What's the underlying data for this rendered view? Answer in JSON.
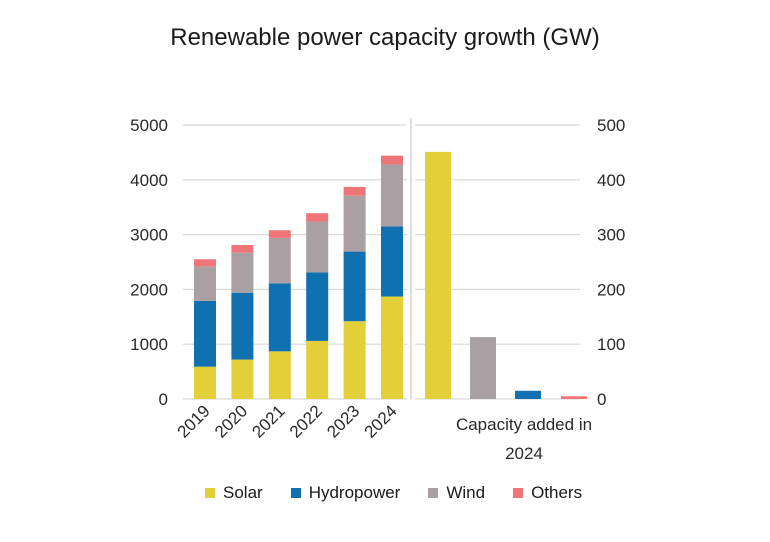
{
  "chart_data": [
    {
      "type": "bar",
      "stacked": true,
      "title": "Renewable power capacity growth (GW)",
      "categories": [
        "2019",
        "2020",
        "2021",
        "2022",
        "2023",
        "2024"
      ],
      "ylim": [
        0,
        5000
      ],
      "yticks": [
        "0",
        "1000",
        "2000",
        "3000",
        "4000",
        "5000"
      ],
      "grid": true,
      "series": [
        {
          "name": "Solar",
          "color": "#e3cf3a",
          "values": [
            590,
            720,
            870,
            1060,
            1420,
            1870
          ]
        },
        {
          "name": "Hydropower",
          "color": "#1170b0",
          "values": [
            1200,
            1220,
            1240,
            1250,
            1270,
            1280
          ]
        },
        {
          "name": "Wind",
          "color": "#aaa0a3",
          "values": [
            630,
            730,
            830,
            930,
            1020,
            1130
          ]
        },
        {
          "name": "Others",
          "color": "#f07579",
          "values": [
            130,
            140,
            140,
            150,
            160,
            160
          ]
        }
      ]
    },
    {
      "type": "bar",
      "xlabel": "Capacity added in 2024",
      "ylim": [
        0,
        500
      ],
      "yticks": [
        "0",
        "100",
        "200",
        "300",
        "400",
        "500"
      ],
      "categories": [
        "Solar",
        "Wind",
        "Hydropower",
        "Others"
      ],
      "values": [
        451,
        113,
        15,
        5
      ],
      "colors": [
        "#e3cf3a",
        "#aaa0a3",
        "#1170b0",
        "#f07579"
      ]
    }
  ],
  "legend": [
    {
      "label": "Solar",
      "color": "#e3cf3a"
    },
    {
      "label": "Hydropower",
      "color": "#1170b0"
    },
    {
      "label": "Wind",
      "color": "#aaa0a3"
    },
    {
      "label": "Others",
      "color": "#f07579"
    }
  ]
}
